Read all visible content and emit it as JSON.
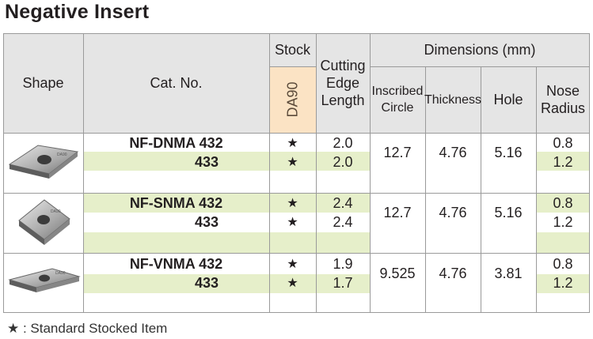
{
  "title": "Negative Insert",
  "headers": {
    "shape": "Shape",
    "cat_no": "Cat. No.",
    "stock": "Stock",
    "grade": "DA90",
    "cutting_edge_length": [
      "Cutting",
      "Edge",
      "Length"
    ],
    "dimensions": "Dimensions (mm)",
    "inscribed_circle": [
      "Inscribed",
      "Circle"
    ],
    "thickness": "Thickness",
    "hole": "Hole",
    "nose_radius": [
      "Nose",
      "Radius"
    ]
  },
  "groups": [
    {
      "shape_icon": "rhombic-55-insert-icon",
      "rows": [
        {
          "cat_no": "NF-DNMA 432",
          "stock": "★",
          "cutting_edge_length": "2.0",
          "nose_radius": "0.8"
        },
        {
          "cat_no": "433",
          "stock": "★",
          "cutting_edge_length": "2.0",
          "nose_radius": "1.2"
        }
      ],
      "inscribed_circle": "12.7",
      "thickness": "4.76",
      "hole": "5.16"
    },
    {
      "shape_icon": "square-insert-icon",
      "rows": [
        {
          "cat_no": "NF-SNMA 432",
          "stock": "★",
          "cutting_edge_length": "2.4",
          "nose_radius": "0.8"
        },
        {
          "cat_no": "433",
          "stock": "★",
          "cutting_edge_length": "2.4",
          "nose_radius": "1.2"
        }
      ],
      "inscribed_circle": "12.7",
      "thickness": "4.76",
      "hole": "5.16"
    },
    {
      "shape_icon": "rhombic-35-insert-icon",
      "rows": [
        {
          "cat_no": "NF-VNMA 432",
          "stock": "★",
          "cutting_edge_length": "1.9",
          "nose_radius": "0.8"
        },
        {
          "cat_no": "433",
          "stock": "★",
          "cutting_edge_length": "1.7",
          "nose_radius": "1.2"
        }
      ],
      "inscribed_circle": "9.525",
      "thickness": "4.76",
      "hole": "3.81"
    }
  ],
  "footnote": "★ : Standard Stocked Item",
  "colors": {
    "header_bg": "#e5e5e5",
    "stock_bg": "#fbe3c4",
    "highlight_row": "#e6efca",
    "grid": "#9a9a9a"
  }
}
